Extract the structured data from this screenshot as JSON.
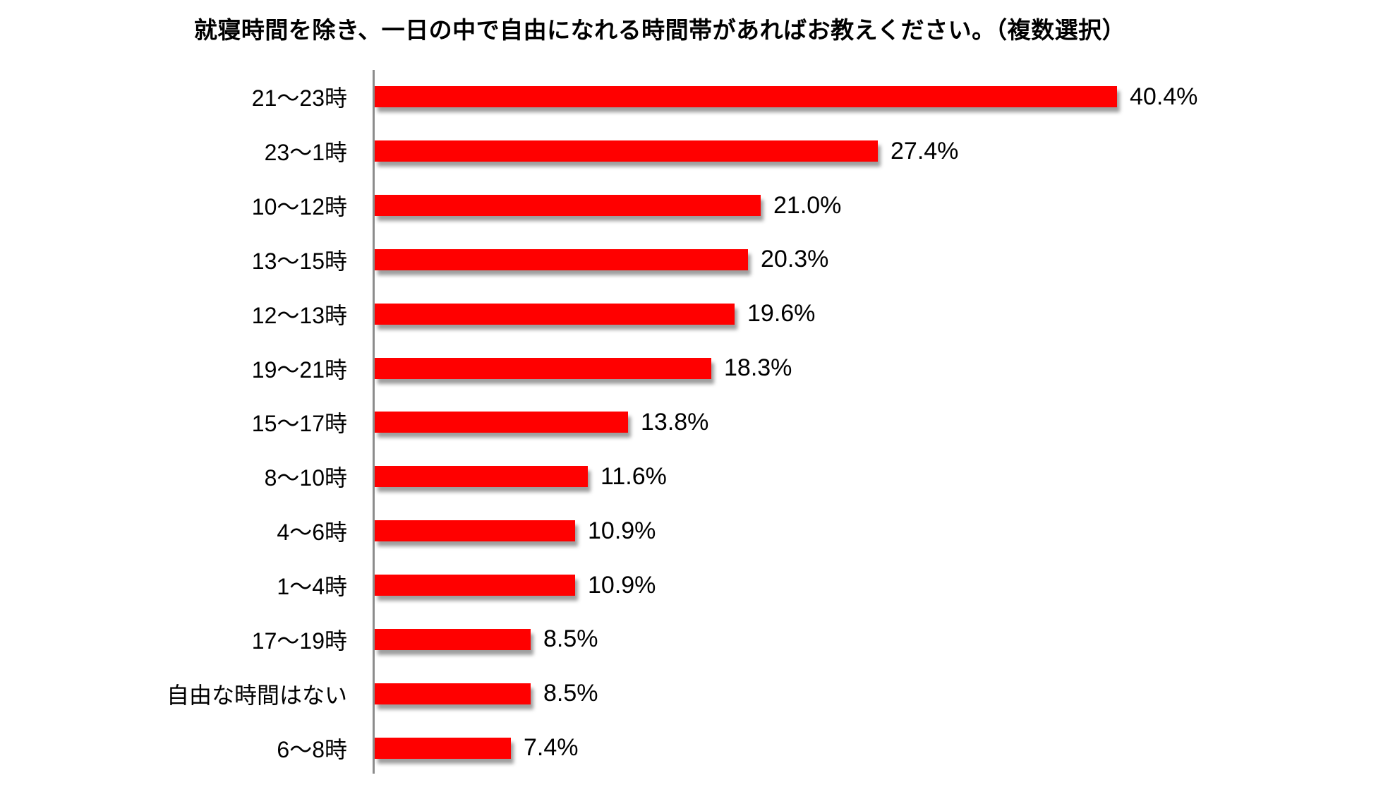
{
  "title": "就寝時間を除き、一日の中で自由になれる時間帯があればお教えください。（複数選択）",
  "chart_data": {
    "type": "bar",
    "orientation": "horizontal",
    "title": "就寝時間を除き、一日の中で自由になれる時間帯があればお教えください。（複数選択）",
    "categories": [
      "21〜23時",
      "23〜1時",
      "10〜12時",
      "13〜15時",
      "12〜13時",
      "19〜21時",
      "15〜17時",
      "8〜10時",
      "4〜6時",
      "1〜4時",
      "17〜19時",
      "自由な時間はない",
      "6〜8時"
    ],
    "values": [
      40.4,
      27.4,
      21.0,
      20.3,
      19.6,
      18.3,
      13.8,
      11.6,
      10.9,
      10.9,
      8.5,
      8.5,
      7.4
    ],
    "value_labels": [
      "40.4%",
      "27.4%",
      "21.0%",
      "20.3%",
      "19.6%",
      "18.3%",
      "13.8%",
      "11.6%",
      "10.9%",
      "10.9%",
      "8.5%",
      "8.5%",
      "7.4%"
    ],
    "xlabel": "",
    "ylabel": "",
    "xlim": [
      0,
      45
    ],
    "grid": false,
    "legend": false,
    "bar_color": "#ff0000",
    "axis_line_color": "#8c8c8c",
    "text_color": "#000000",
    "background_color": "#ffffff"
  }
}
